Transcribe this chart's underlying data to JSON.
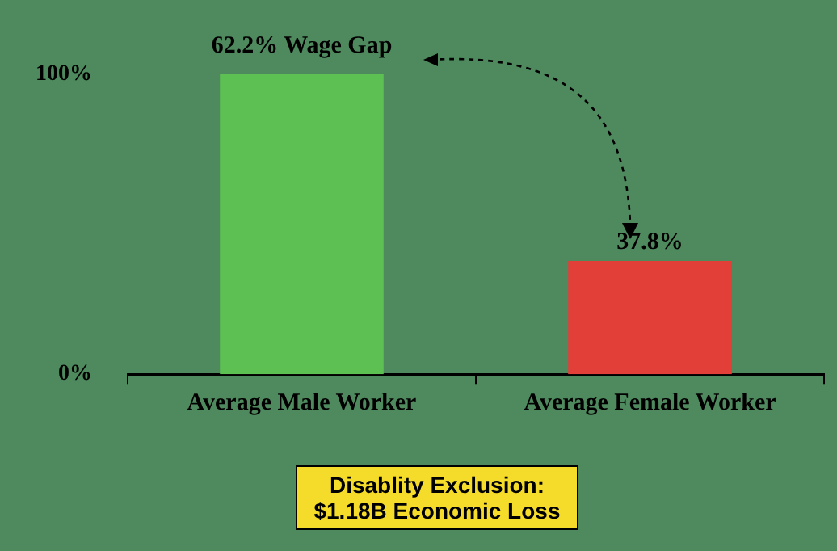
{
  "chart_data": {
    "type": "bar",
    "categories": [
      "Average Male Worker",
      "Average Female Worker"
    ],
    "series": [
      {
        "colors": [
          "#5cc152",
          "#e23f38"
        ],
        "values": [
          100,
          37.8
        ],
        "value_labels": [
          null,
          "37.8%"
        ]
      }
    ],
    "ylim": [
      0,
      100
    ],
    "yticks": [
      {
        "value": 0,
        "label": "0%"
      },
      {
        "value": 100,
        "label": "100%"
      }
    ],
    "grid": false,
    "legend": false,
    "annotations": [
      "62.2% Wage Gap",
      "Disablity Exclusion: $1.18B Economic Loss"
    ]
  }
}
